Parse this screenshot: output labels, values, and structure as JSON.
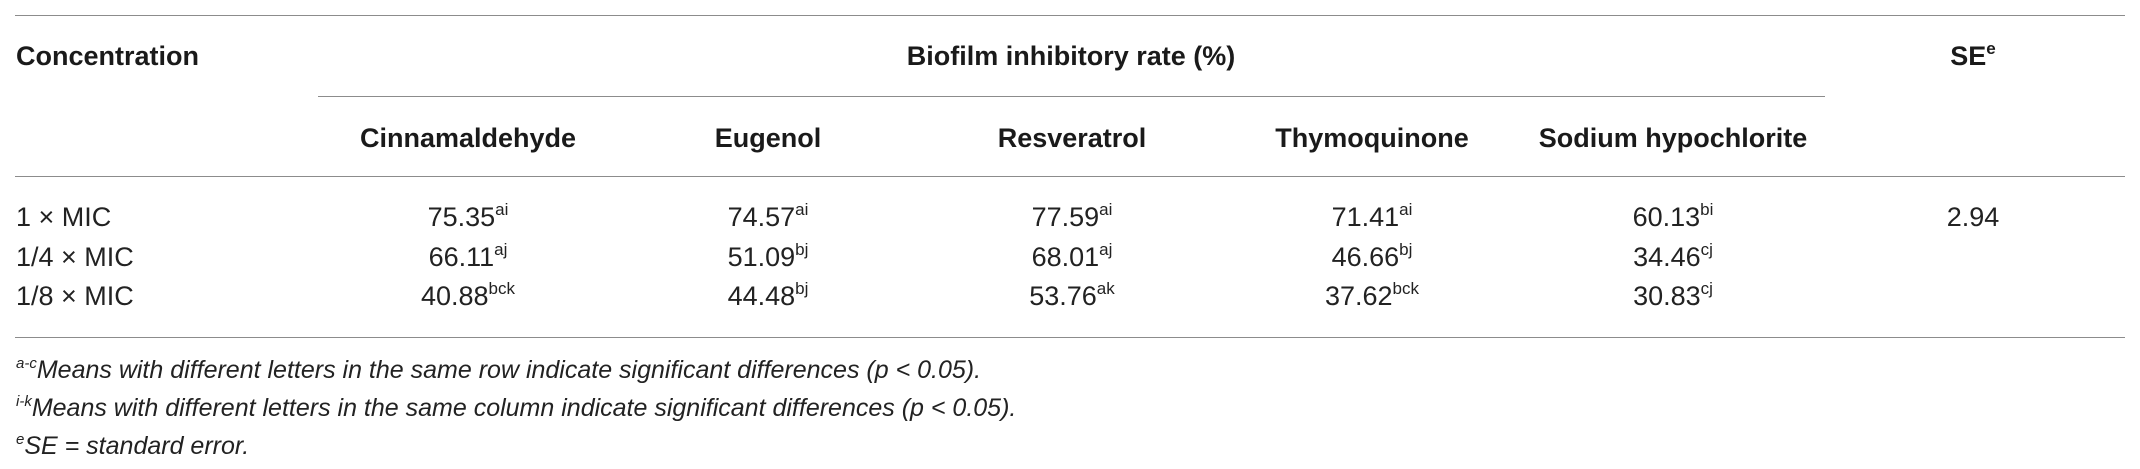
{
  "table": {
    "header": {
      "concentration": "Concentration",
      "group_title": "Biofilm inhibitory rate (%)",
      "se_label": "SE",
      "se_sup": "e",
      "columns": [
        "Cinnamaldehyde",
        "Eugenol",
        "Resveratrol",
        "Thymoquinone",
        "Sodium hypochlorite"
      ]
    },
    "rows": [
      {
        "label": "1 × MIC",
        "cells": [
          {
            "value": "75.35",
            "sup": "ai"
          },
          {
            "value": "74.57",
            "sup": "ai"
          },
          {
            "value": "77.59",
            "sup": "ai"
          },
          {
            "value": "71.41",
            "sup": "ai"
          },
          {
            "value": "60.13",
            "sup": "bi"
          }
        ],
        "se": "2.94"
      },
      {
        "label": "1/4 × MIC",
        "cells": [
          {
            "value": "66.11",
            "sup": "aj"
          },
          {
            "value": "51.09",
            "sup": "bj"
          },
          {
            "value": "68.01",
            "sup": "aj"
          },
          {
            "value": "46.66",
            "sup": "bj"
          },
          {
            "value": "34.46",
            "sup": "cj"
          }
        ],
        "se": ""
      },
      {
        "label": "1/8 × MIC",
        "cells": [
          {
            "value": "40.88",
            "sup": "bck"
          },
          {
            "value": "44.48",
            "sup": "bj"
          },
          {
            "value": "53.76",
            "sup": "ak"
          },
          {
            "value": "37.62",
            "sup": "bck"
          },
          {
            "value": "30.83",
            "sup": "cj"
          }
        ],
        "se": ""
      }
    ],
    "footnotes": [
      {
        "sup": "a-c",
        "text": "Means with different letters in the same row indicate significant differences (p < 0.05)."
      },
      {
        "sup": "i-k",
        "text": "Means with different letters in the same column indicate significant differences (p < 0.05)."
      },
      {
        "sup": "e",
        "text": "SE = standard error."
      }
    ]
  }
}
